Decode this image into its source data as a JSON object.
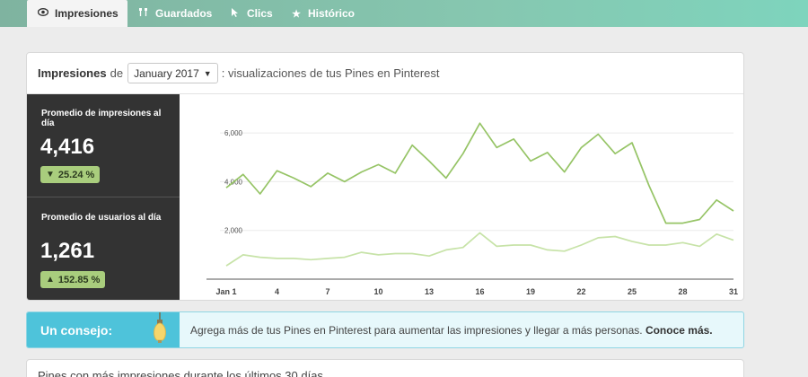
{
  "tabs": [
    {
      "label": "Impresiones",
      "icon": "eye-icon"
    },
    {
      "label": "Guardados",
      "icon": "pin-icon"
    },
    {
      "label": "Clics",
      "icon": "cursor-icon"
    },
    {
      "label": "Histórico",
      "icon": "star-icon"
    }
  ],
  "header": {
    "title": "Impresiones",
    "de": "de",
    "month": "January 2017",
    "rest": ": visualizaciones de tus Pines en Pinterest"
  },
  "stats": {
    "impressions": {
      "label": "Promedio de impresiones al día",
      "value": "4,416",
      "change": "25.24 %",
      "direction": "down"
    },
    "users": {
      "label": "Promedio de usuarios al día",
      "value": "1,261",
      "change": "152.85 %",
      "direction": "up"
    }
  },
  "tip": {
    "title": "Un consejo:",
    "text": "Agrega más de tus Pines en Pinterest para aumentar las impresiones y llegar a más personas.",
    "link": "Conoce más."
  },
  "bottom": {
    "text": "Pines con más impresiones  durante los últimos 30 días"
  },
  "colors": {
    "impressions_line": "#96c466",
    "users_line": "#c7e3a8",
    "accent": "#4ec3da"
  },
  "chart_data": {
    "type": "line",
    "x": [
      1,
      2,
      3,
      4,
      5,
      6,
      7,
      8,
      9,
      10,
      11,
      12,
      13,
      14,
      15,
      16,
      17,
      18,
      19,
      20,
      21,
      22,
      23,
      24,
      25,
      26,
      27,
      28,
      29,
      30,
      31
    ],
    "x_tick_labels": [
      "Jan 1",
      "4",
      "7",
      "10",
      "13",
      "16",
      "19",
      "22",
      "25",
      "28",
      "31"
    ],
    "x_tick_values": [
      1,
      4,
      7,
      10,
      13,
      16,
      19,
      22,
      25,
      28,
      31
    ],
    "y_ticks": [
      "2,000",
      "4,000",
      "6,000"
    ],
    "y_tick_values": [
      2000,
      4000,
      6000
    ],
    "ylim": [
      0,
      7000
    ],
    "grid": true,
    "series": [
      {
        "values": [
          3750,
          4300,
          3500,
          4450,
          4150,
          3800,
          4350,
          4000,
          4400,
          4700,
          4350,
          5500,
          4850,
          4150,
          5150,
          6400,
          5400,
          5750,
          4850,
          5200,
          4400,
          5400,
          5950,
          5150,
          5600,
          3850,
          2300,
          2300,
          2450,
          3250,
          2800
        ]
      },
      {
        "values": [
          550,
          1000,
          900,
          850,
          850,
          800,
          850,
          900,
          1100,
          1000,
          1050,
          1050,
          950,
          1200,
          1300,
          1900,
          1350,
          1400,
          1400,
          1200,
          1150,
          1400,
          1700,
          1750,
          1550,
          1400,
          1400,
          1500,
          1350,
          1850,
          1600
        ]
      }
    ]
  }
}
